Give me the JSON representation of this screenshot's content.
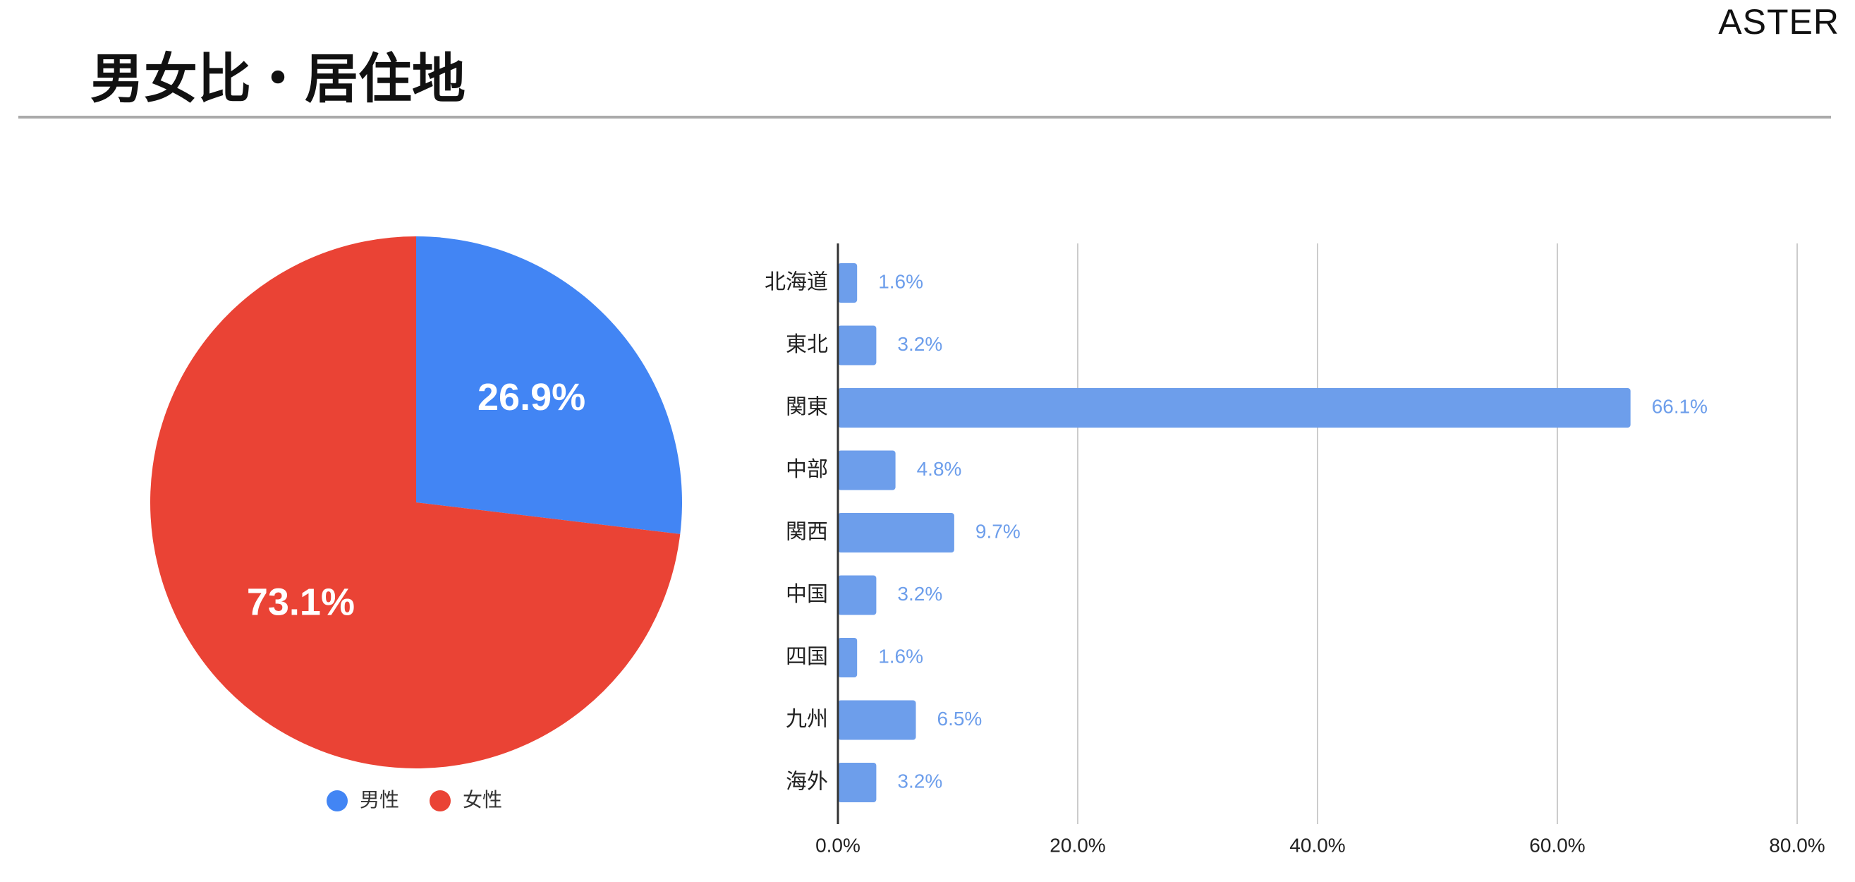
{
  "header": {
    "title": "男女比・居住地",
    "logo": "ASTER"
  },
  "chart_data": [
    {
      "type": "pie",
      "labels": [
        "男性",
        "女性"
      ],
      "values": [
        26.9,
        73.1
      ],
      "value_labels": [
        "26.9%",
        "73.1%"
      ],
      "colors": [
        "#4285f4",
        "#ea4335"
      ],
      "legend": "bottom"
    },
    {
      "type": "bar",
      "orientation": "horizontal",
      "categories": [
        "北海道",
        "東北",
        "関東",
        "中部",
        "関西",
        "中国",
        "四国",
        "九州",
        "海外"
      ],
      "values": [
        1.6,
        3.2,
        66.1,
        4.8,
        9.7,
        3.2,
        1.6,
        6.5,
        3.2
      ],
      "value_labels": [
        "1.6%",
        "3.2%",
        "66.1%",
        "4.8%",
        "9.7%",
        "3.2%",
        "1.6%",
        "6.5%",
        "3.2%"
      ],
      "xlim": [
        0,
        80
      ],
      "xticks": [
        "0.0%",
        "20.0%",
        "40.0%",
        "60.0%",
        "80.0%"
      ],
      "bar_color": "#6d9eeb",
      "grid": true
    }
  ]
}
